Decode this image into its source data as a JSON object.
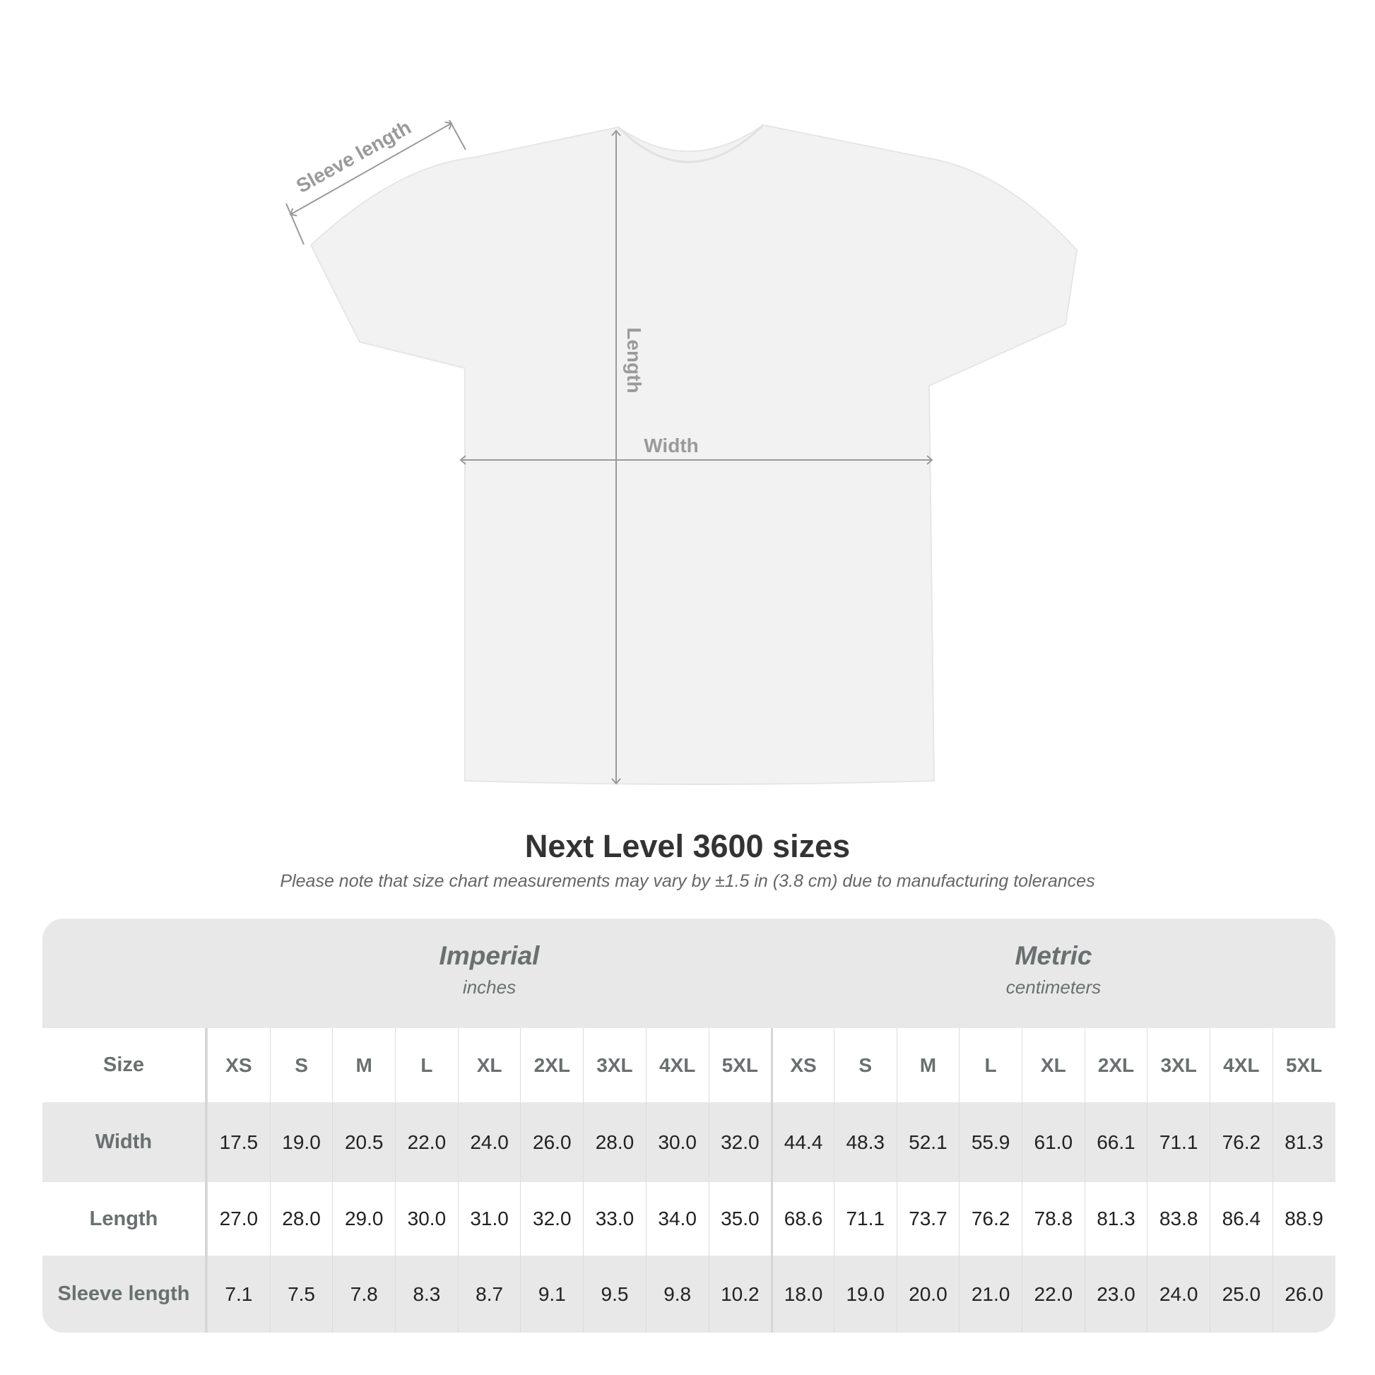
{
  "diagram": {
    "labels": {
      "sleeve": "Sleeve length",
      "length": "Length",
      "width": "Width"
    },
    "shirt_color": "#f2f2f2",
    "measure_color": "#9a9a9a"
  },
  "title": "Next Level 3600 sizes",
  "note": "Please note that size chart measurements may vary by ±1.5 in (3.8 cm) due to manufacturing tolerances",
  "table": {
    "imperial": {
      "name": "Imperial",
      "unit": "inches"
    },
    "metric": {
      "name": "Metric",
      "unit": "centimeters"
    },
    "size_label": "Size",
    "sizes": [
      "XS",
      "S",
      "M",
      "L",
      "XL",
      "2XL",
      "3XL",
      "4XL",
      "5XL"
    ],
    "rows": [
      {
        "label": "Width",
        "imperial": [
          "17.5",
          "19.0",
          "20.5",
          "22.0",
          "24.0",
          "26.0",
          "28.0",
          "30.0",
          "32.0"
        ],
        "metric": [
          "44.4",
          "48.3",
          "52.1",
          "55.9",
          "61.0",
          "66.1",
          "71.1",
          "76.2",
          "81.3"
        ]
      },
      {
        "label": "Length",
        "imperial": [
          "27.0",
          "28.0",
          "29.0",
          "30.0",
          "31.0",
          "32.0",
          "33.0",
          "34.0",
          "35.0"
        ],
        "metric": [
          "68.6",
          "71.1",
          "73.7",
          "76.2",
          "78.8",
          "81.3",
          "83.8",
          "86.4",
          "88.9"
        ]
      },
      {
        "label": "Sleeve length",
        "imperial": [
          "7.1",
          "7.5",
          "7.8",
          "8.3",
          "8.7",
          "9.1",
          "9.5",
          "9.8",
          "10.2"
        ],
        "metric": [
          "18.0",
          "19.0",
          "20.0",
          "21.0",
          "22.0",
          "23.0",
          "24.0",
          "25.0",
          "26.0"
        ]
      }
    ]
  }
}
